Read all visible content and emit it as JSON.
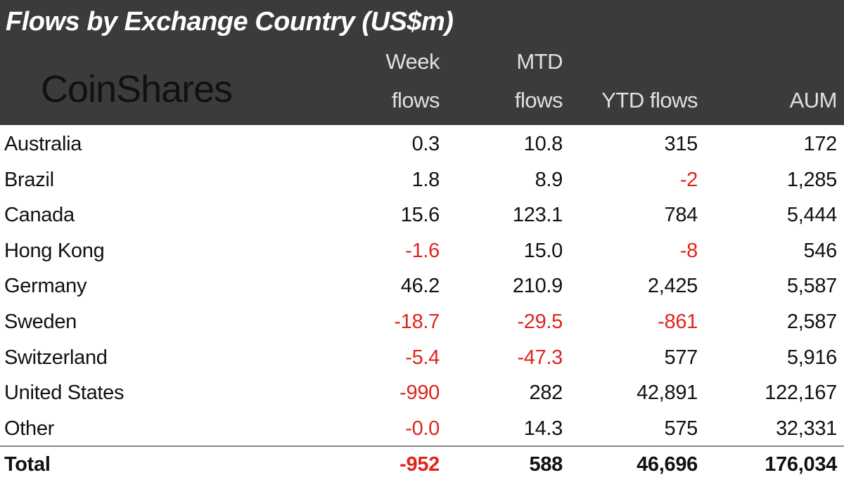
{
  "header": {
    "title": "Flows by Exchange Country (US$m)",
    "logo": "CoinShares",
    "columns": [
      "Week flows",
      "MTD flows",
      "YTD flows",
      "AUM"
    ]
  },
  "table": {
    "rows": [
      [
        "Australia",
        "0.3",
        "10.8",
        "315",
        "172"
      ],
      [
        "Brazil",
        "1.8",
        "8.9",
        "-2",
        "1,285"
      ],
      [
        "Canada",
        "15.6",
        "123.1",
        "784",
        "5,444"
      ],
      [
        "Hong Kong",
        "-1.6",
        "15.0",
        "-8",
        "546"
      ],
      [
        "Germany",
        "46.2",
        "210.9",
        "2,425",
        "5,587"
      ],
      [
        "Sweden",
        "-18.7",
        "-29.5",
        "-861",
        "2,587"
      ],
      [
        "Switzerland",
        "-5.4",
        "-47.3",
        "577",
        "5,916"
      ],
      [
        "United States",
        "-990",
        "282",
        "42,891",
        "122,167"
      ],
      [
        "Other",
        "-0.0",
        "14.3",
        "575",
        "32,331"
      ]
    ],
    "total": [
      "Total",
      "-952",
      "588",
      "46,696",
      "176,034"
    ]
  }
}
